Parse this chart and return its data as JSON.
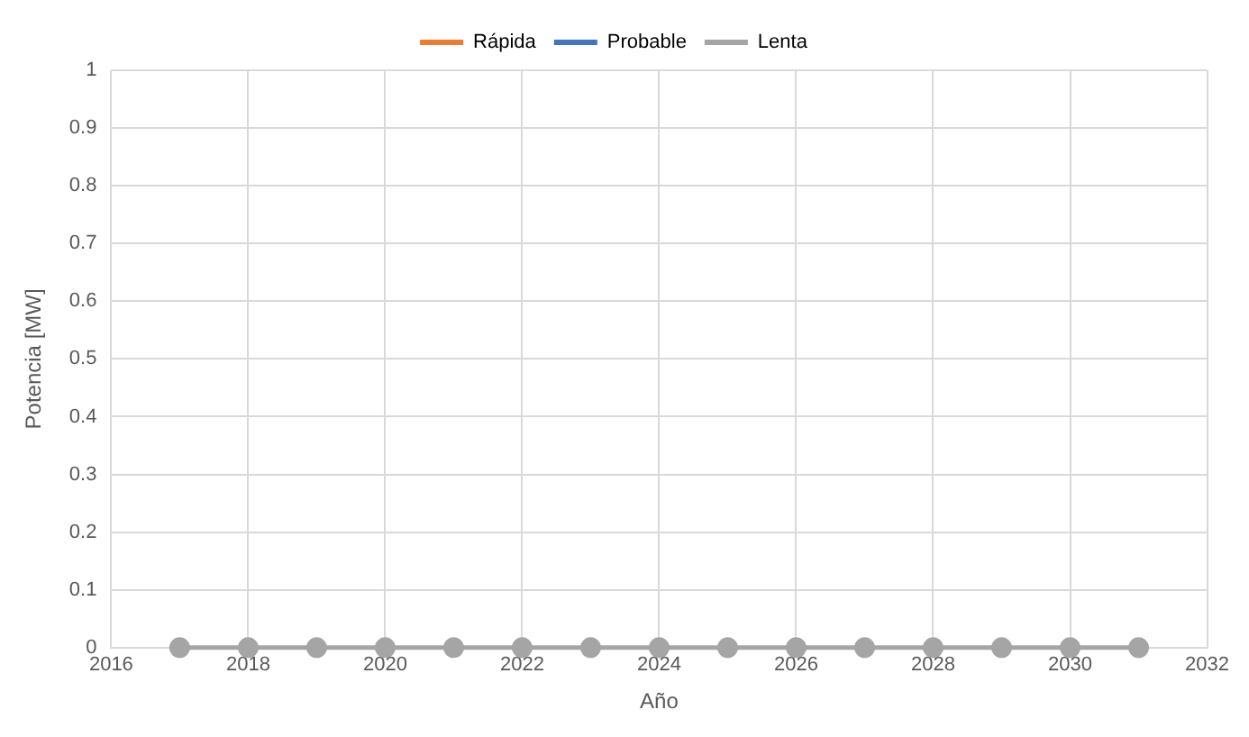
{
  "chart_data": {
    "type": "line",
    "xlabel": "Año",
    "ylabel": "Potencia [MW]",
    "x": [
      2017,
      2018,
      2019,
      2020,
      2021,
      2022,
      2023,
      2024,
      2025,
      2026,
      2027,
      2028,
      2029,
      2030,
      2031
    ],
    "series": [
      {
        "name": "Rápida",
        "color": "#ed7d31",
        "values": [
          null,
          null,
          null,
          null,
          null,
          null,
          null,
          null,
          null,
          null,
          null,
          null,
          null,
          null,
          null
        ]
      },
      {
        "name": "Probable",
        "color": "#4472c4",
        "values": [
          null,
          null,
          null,
          null,
          null,
          null,
          null,
          null,
          null,
          null,
          null,
          null,
          null,
          null,
          null
        ]
      },
      {
        "name": "Lenta",
        "color": "#a5a5a5",
        "values": [
          0,
          0,
          0,
          0,
          0,
          0,
          0,
          0,
          0,
          0,
          0,
          0,
          0,
          0,
          0
        ]
      }
    ],
    "xlim": [
      2016,
      2032
    ],
    "xticks": [
      2016,
      2018,
      2020,
      2022,
      2024,
      2026,
      2028,
      2030,
      2032
    ],
    "ylim": [
      0,
      1
    ],
    "yticks": [
      0,
      0.1,
      0.2,
      0.3,
      0.4,
      0.5,
      0.6,
      0.7,
      0.8,
      0.9,
      1
    ],
    "grid": true,
    "legend": "top",
    "marker": "circle",
    "line_style": "solid"
  }
}
